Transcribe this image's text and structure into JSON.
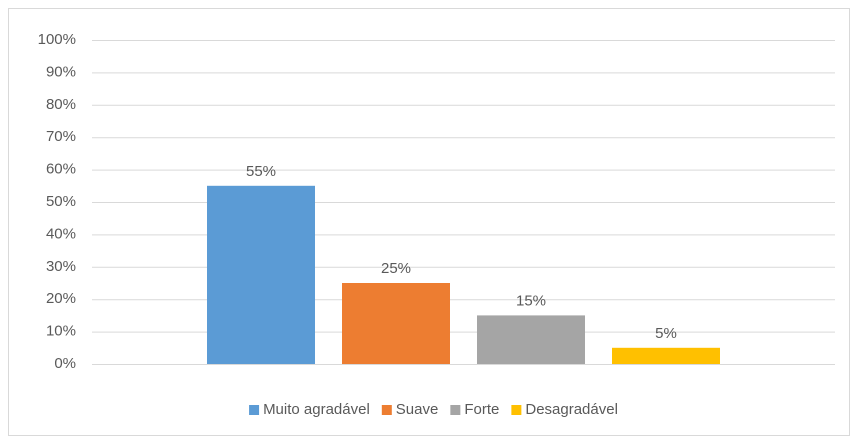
{
  "chart_data": {
    "type": "bar",
    "categories": [
      null
    ],
    "series": [
      {
        "name": "Muito agradável",
        "color": "#5b9bd5",
        "values": [
          55
        ],
        "value_labels": [
          "55%"
        ]
      },
      {
        "name": "Suave",
        "color": "#ed7d31",
        "values": [
          25
        ],
        "value_labels": [
          "25%"
        ]
      },
      {
        "name": "Forte",
        "color": "#a5a5a5",
        "values": [
          15
        ],
        "value_labels": [
          "15%"
        ]
      },
      {
        "name": "Desagradável",
        "color": "#ffc000",
        "values": [
          5
        ],
        "value_labels": [
          "5%"
        ]
      }
    ],
    "ylim": [
      0,
      100
    ],
    "yticks": [
      {
        "value": 0,
        "label": "0%"
      },
      {
        "value": 10,
        "label": "10%"
      },
      {
        "value": 20,
        "label": "20%"
      },
      {
        "value": 30,
        "label": "30%"
      },
      {
        "value": 40,
        "label": "40%"
      },
      {
        "value": 50,
        "label": "50%"
      },
      {
        "value": 60,
        "label": "60%"
      },
      {
        "value": 70,
        "label": "70%"
      },
      {
        "value": 80,
        "label": "80%"
      },
      {
        "value": 90,
        "label": "90%"
      },
      {
        "value": 100,
        "label": "100%"
      }
    ],
    "grid": true,
    "legend": "bottom"
  }
}
